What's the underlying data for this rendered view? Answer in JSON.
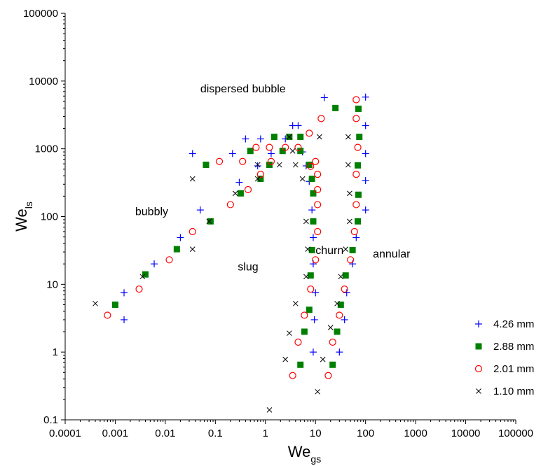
{
  "chart_data": {
    "type": "scatter",
    "xscale": "log",
    "yscale": "log",
    "xlim": [
      0.0001,
      100000
    ],
    "ylim": [
      0.1,
      100000
    ],
    "xlabel": {
      "main": "We",
      "sub": "gs"
    },
    "ylabel": {
      "main": "We",
      "sub": "ls"
    },
    "x_ticks": [
      "0.0001",
      "0.001",
      "0.01",
      "0.1",
      "1",
      "10",
      "100",
      "1000",
      "10000",
      "100000"
    ],
    "y_ticks": [
      "0.1",
      "1",
      "10",
      "100",
      "1000",
      "10000",
      "100000"
    ],
    "grid": false,
    "legend_position": "bottom-right",
    "annotations": [
      {
        "text": "dispersed bubble",
        "x": 0.05,
        "y": 6800
      },
      {
        "text": "bubbly",
        "x": 0.0025,
        "y": 105
      },
      {
        "text": "slug",
        "x": 0.28,
        "y": 16
      },
      {
        "text": "churn",
        "x": 10,
        "y": 28
      },
      {
        "text": "annular",
        "x": 140,
        "y": 25
      }
    ],
    "series": [
      {
        "name": "4.26 mm",
        "marker": "plus",
        "color": "#0000ff",
        "points": [
          [
            0.0015,
            3.0
          ],
          [
            0.0015,
            7.5
          ],
          [
            0.006,
            20
          ],
          [
            0.02,
            49
          ],
          [
            0.05,
            125
          ],
          [
            0.035,
            850
          ],
          [
            0.22,
            850
          ],
          [
            0.3,
            320
          ],
          [
            0.4,
            1400
          ],
          [
            0.7,
            560
          ],
          [
            0.8,
            1400
          ],
          [
            1.3,
            850
          ],
          [
            2.5,
            1400
          ],
          [
            3.5,
            2200
          ],
          [
            4.5,
            2200
          ],
          [
            5.5,
            900
          ],
          [
            6.5,
            560
          ],
          [
            7.5,
            330
          ],
          [
            8.5,
            125
          ],
          [
            9.0,
            49
          ],
          [
            9.0,
            20
          ],
          [
            10,
            7.5
          ],
          [
            9.5,
            3.0
          ],
          [
            9.0,
            1.0
          ],
          [
            15,
            5700
          ],
          [
            30,
            1.0
          ],
          [
            38,
            3.0
          ],
          [
            42,
            7.5
          ],
          [
            55,
            20
          ],
          [
            65,
            49
          ],
          [
            100,
            125
          ],
          [
            100,
            340
          ],
          [
            100,
            850
          ],
          [
            100,
            2200
          ],
          [
            100,
            5800
          ]
        ]
      },
      {
        "name": "2.88 mm",
        "marker": "square",
        "color": "#008000",
        "points": [
          [
            0.001,
            5.0
          ],
          [
            0.004,
            14
          ],
          [
            0.017,
            33
          ],
          [
            0.08,
            85
          ],
          [
            0.065,
            580
          ],
          [
            0.32,
            220
          ],
          [
            0.5,
            930
          ],
          [
            0.8,
            360
          ],
          [
            1.2,
            580
          ],
          [
            1.5,
            1500
          ],
          [
            2.2,
            930
          ],
          [
            3.0,
            1500
          ],
          [
            5.0,
            930
          ],
          [
            5.0,
            1500
          ],
          [
            7.5,
            580
          ],
          [
            8.5,
            360
          ],
          [
            9.0,
            220
          ],
          [
            9.0,
            85
          ],
          [
            8.5,
            32
          ],
          [
            8.0,
            13.5
          ],
          [
            7.5,
            4.2
          ],
          [
            6.0,
            2.0
          ],
          [
            5.0,
            0.65
          ],
          [
            25,
            4000
          ],
          [
            22,
            0.65
          ],
          [
            27,
            2.0
          ],
          [
            32,
            5.0
          ],
          [
            40,
            13.5
          ],
          [
            55,
            32
          ],
          [
            70,
            85
          ],
          [
            72,
            210
          ],
          [
            70,
            570
          ],
          [
            75,
            1500
          ],
          [
            72,
            3900
          ]
        ]
      },
      {
        "name": "2.01 mm",
        "marker": "circle",
        "color": "#ff0000",
        "points": [
          [
            0.0007,
            3.5
          ],
          [
            0.003,
            8.5
          ],
          [
            0.012,
            23
          ],
          [
            0.035,
            60
          ],
          [
            0.12,
            650
          ],
          [
            0.2,
            150
          ],
          [
            0.35,
            650
          ],
          [
            0.45,
            250
          ],
          [
            0.65,
            1050
          ],
          [
            0.8,
            420
          ],
          [
            1.2,
            1050
          ],
          [
            1.3,
            650
          ],
          [
            2.5,
            1050
          ],
          [
            4.5,
            1050
          ],
          [
            7.5,
            1700
          ],
          [
            8.0,
            550
          ],
          [
            10,
            650
          ],
          [
            11,
            420
          ],
          [
            11,
            250
          ],
          [
            11,
            150
          ],
          [
            11,
            60
          ],
          [
            10,
            23
          ],
          [
            8.0,
            8.5
          ],
          [
            6.0,
            3.5
          ],
          [
            4.5,
            1.4
          ],
          [
            3.5,
            0.45
          ],
          [
            13,
            2800
          ],
          [
            18,
            0.45
          ],
          [
            22,
            1.4
          ],
          [
            30,
            3.5
          ],
          [
            38,
            8.5
          ],
          [
            50,
            23
          ],
          [
            60,
            60
          ],
          [
            65,
            150
          ],
          [
            65,
            420
          ],
          [
            70,
            1050
          ],
          [
            65,
            2800
          ],
          [
            65,
            5300
          ]
        ]
      },
      {
        "name": "1.10 mm",
        "marker": "cross",
        "color": "#000000",
        "points": [
          [
            0.0004,
            5.2
          ],
          [
            0.0035,
            13
          ],
          [
            0.035,
            33
          ],
          [
            0.035,
            360
          ],
          [
            0.075,
            85
          ],
          [
            0.25,
            220
          ],
          [
            0.7,
            580
          ],
          [
            0.7,
            360
          ],
          [
            1.9,
            580
          ],
          [
            3.0,
            1500
          ],
          [
            3.5,
            930
          ],
          [
            4.0,
            580
          ],
          [
            5.5,
            360
          ],
          [
            6.5,
            85
          ],
          [
            7.0,
            33
          ],
          [
            6.5,
            13
          ],
          [
            4.0,
            5.2
          ],
          [
            3.0,
            1.9
          ],
          [
            2.5,
            0.78
          ],
          [
            1.2,
            0.14
          ],
          [
            11,
            0.26
          ],
          [
            14,
            0.78
          ],
          [
            20,
            2.3
          ],
          [
            27,
            5.2
          ],
          [
            32,
            13
          ],
          [
            40,
            33
          ],
          [
            48,
            85
          ],
          [
            48,
            220
          ],
          [
            45,
            580
          ],
          [
            45,
            1500
          ],
          [
            12,
            1500
          ]
        ]
      }
    ]
  }
}
